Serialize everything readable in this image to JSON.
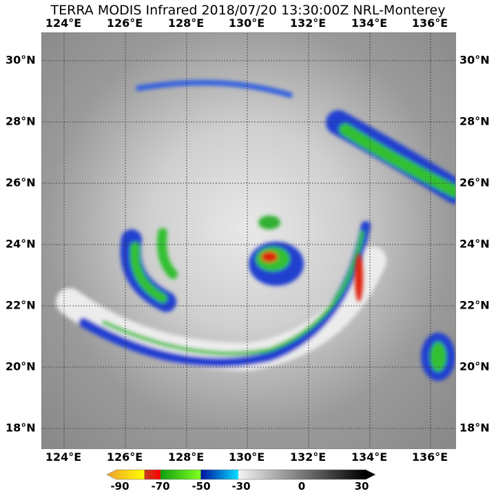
{
  "title": "TERRA MODIS Infrared 2018/07/20 13:30:00Z NRL-Monterey",
  "lon_labels": [
    "124°E",
    "126°E",
    "128°E",
    "130°E",
    "132°E",
    "134°E",
    "136°E"
  ],
  "lat_labels": [
    "30°N",
    "28°N",
    "26°N",
    "24°N",
    "22°N",
    "20°N",
    "18°N"
  ],
  "colorbar": {
    "labels": [
      "-90",
      "-70",
      "-50",
      "-30",
      "0",
      "30"
    ],
    "colors": {
      "orange": "#f0a030",
      "yellow": "#ffff00",
      "red": "#e02010",
      "green": "#20b020",
      "lime": "#80ff20",
      "blue": "#0010a0",
      "cyan": "#00e0ff",
      "white": "#f0f0f0",
      "black": "#000000"
    }
  }
}
